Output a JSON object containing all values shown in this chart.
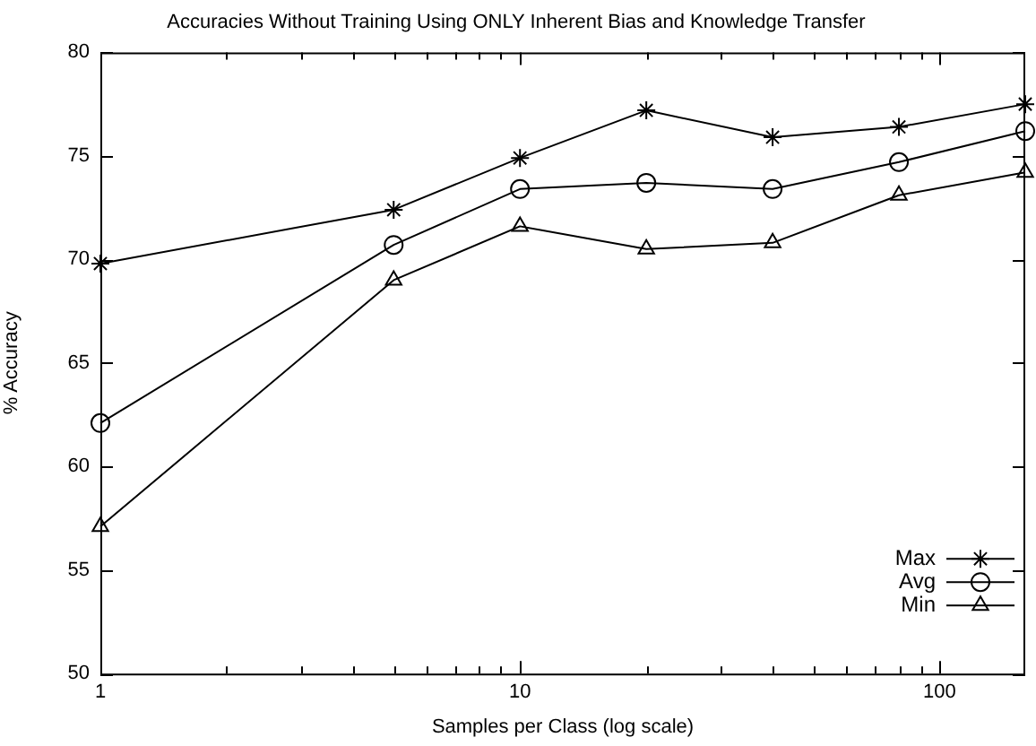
{
  "chart_data": {
    "type": "line",
    "title": "Accuracies Without Training Using ONLY Inherent Bias and Knowledge Transfer",
    "xlabel": "Samples per Class (log scale)",
    "ylabel": "% Accuracy",
    "log": "x",
    "grid": false,
    "legend": "bottom right",
    "line_style": "solid",
    "x": [
      1,
      5,
      10,
      20,
      40,
      80,
      160
    ],
    "xlim": [
      1,
      160
    ],
    "xticks": [
      1,
      {
        "value": 2,
        "label": null
      },
      {
        "value": 3,
        "label": null
      },
      {
        "value": 4,
        "label": null
      },
      {
        "value": 5,
        "label": null
      },
      {
        "value": 6,
        "label": null
      },
      {
        "value": 7,
        "label": null
      },
      {
        "value": 8,
        "label": null
      },
      {
        "value": 9,
        "label": null
      },
      10,
      {
        "value": 20,
        "label": null
      },
      {
        "value": 30,
        "label": null
      },
      {
        "value": 40,
        "label": null
      },
      {
        "value": 50,
        "label": null
      },
      {
        "value": 60,
        "label": null
      },
      {
        "value": 70,
        "label": null
      },
      {
        "value": 80,
        "label": null
      },
      {
        "value": 90,
        "label": null
      },
      100
    ],
    "ylim": [
      50,
      80
    ],
    "yticks": [
      50,
      55,
      60,
      65,
      70,
      75,
      80
    ],
    "series": [
      {
        "name": "Max",
        "color": "#000000",
        "marker": "cross",
        "values": [
          69.8,
          72.4,
          74.9,
          77.2,
          75.9,
          76.4,
          77.5
        ]
      },
      {
        "name": "Avg",
        "color": "#000000",
        "marker": "circle",
        "values": [
          62.1,
          70.7,
          73.4,
          73.7,
          73.4,
          74.7,
          76.2
        ]
      },
      {
        "name": "Min",
        "color": "#000000",
        "marker": "triangle",
        "values": [
          57.1,
          69.0,
          71.6,
          70.5,
          70.8,
          73.1,
          74.2
        ]
      }
    ]
  }
}
